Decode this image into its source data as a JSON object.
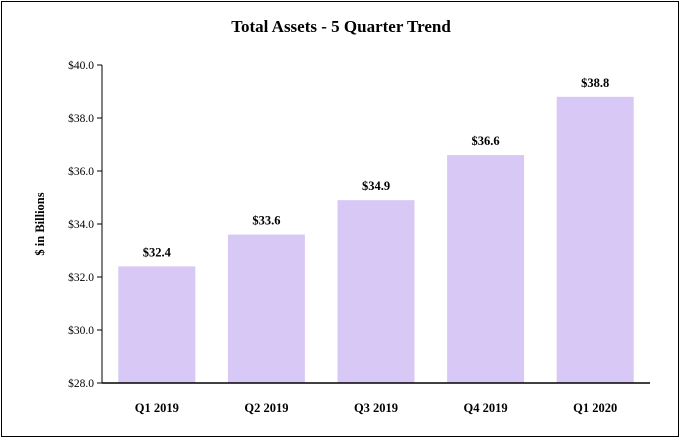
{
  "chart_data": {
    "type": "bar",
    "title": "Total Assets - 5 Quarter Trend",
    "xlabel": "",
    "ylabel": "$ in Billions",
    "categories": [
      "Q1 2019",
      "Q2 2019",
      "Q3 2019",
      "Q4 2019",
      "Q1 2020"
    ],
    "values": [
      32.4,
      33.6,
      34.9,
      36.6,
      38.8
    ],
    "data_labels": [
      "$32.4",
      "$33.6",
      "$34.9",
      "$36.6",
      "$38.8"
    ],
    "ylim": [
      28.0,
      40.0
    ],
    "yticks": [
      28,
      30,
      32,
      34,
      36,
      38,
      40
    ],
    "ytick_labels": [
      "$28.0",
      "$30.0",
      "$32.0",
      "$34.0",
      "$36.0",
      "$38.0",
      "$40.0"
    ],
    "grid": false,
    "legend": "none",
    "colors": {
      "bar": "#d8c8f6",
      "axis": "#000000",
      "background": "#ffffff"
    }
  }
}
